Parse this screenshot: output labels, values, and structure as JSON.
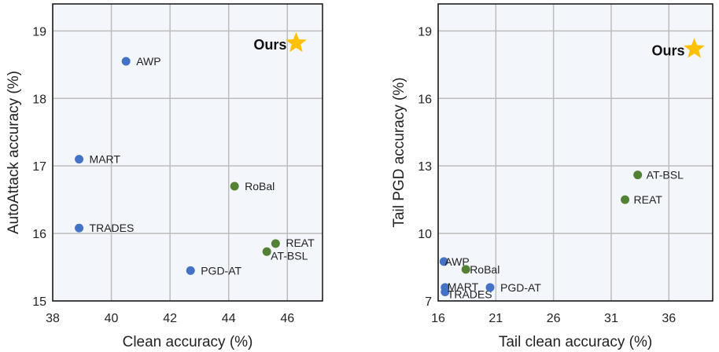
{
  "chart_data": [
    {
      "type": "scatter",
      "xlabel": "Clean accuracy (%)",
      "ylabel": "AutoAttack accuracy (%)",
      "xlim": [
        38,
        47.2
      ],
      "ylim": [
        15,
        19.4
      ],
      "xticks": [
        38,
        40,
        42,
        44,
        46
      ],
      "yticks": [
        15,
        16,
        17,
        18,
        19
      ],
      "grid": true,
      "colors": {
        "blue": "#4472c4",
        "green": "#548235",
        "star": "#ffc000"
      },
      "points": [
        {
          "label": "AWP",
          "x": 40.5,
          "y": 18.55,
          "color": "blue"
        },
        {
          "label": "MART",
          "x": 38.9,
          "y": 17.1,
          "color": "blue"
        },
        {
          "label": "TRADES",
          "x": 38.9,
          "y": 16.08,
          "color": "blue"
        },
        {
          "label": "PGD-AT",
          "x": 42.7,
          "y": 15.45,
          "color": "blue"
        },
        {
          "label": "RoBal",
          "x": 44.2,
          "y": 16.7,
          "color": "green"
        },
        {
          "label": "REAT",
          "x": 45.6,
          "y": 15.85,
          "color": "green"
        },
        {
          "label": "AT-BSL",
          "x": 45.3,
          "y": 15.73,
          "color": "green"
        },
        {
          "label": "Ours",
          "x": 46.3,
          "y": 18.82,
          "color": "star"
        }
      ]
    },
    {
      "type": "scatter",
      "xlabel": "Tail clean accuracy (%)",
      "ylabel": "Tail PGD accuracy (%)",
      "xlim": [
        16,
        39.8
      ],
      "ylim": [
        7,
        20.2
      ],
      "xticks": [
        16,
        21,
        26,
        31,
        36
      ],
      "yticks": [
        7,
        10,
        13,
        16,
        19
      ],
      "grid": true,
      "colors": {
        "blue": "#4472c4",
        "green": "#548235",
        "star": "#ffc000"
      },
      "points": [
        {
          "label": "AWP",
          "x": 16.5,
          "y": 8.75,
          "color": "blue"
        },
        {
          "label": "MART",
          "x": 16.6,
          "y": 7.6,
          "color": "blue"
        },
        {
          "label": "TRADES",
          "x": 16.6,
          "y": 7.4,
          "color": "blue"
        },
        {
          "label": "PGD-AT",
          "x": 20.5,
          "y": 7.6,
          "color": "blue"
        },
        {
          "label": "RoBal",
          "x": 18.4,
          "y": 8.4,
          "color": "green"
        },
        {
          "label": "AT-BSL",
          "x": 33.3,
          "y": 12.6,
          "color": "green"
        },
        {
          "label": "REAT",
          "x": 32.2,
          "y": 11.5,
          "color": "green"
        },
        {
          "label": "Ours",
          "x": 38.2,
          "y": 18.2,
          "color": "star"
        }
      ]
    }
  ]
}
